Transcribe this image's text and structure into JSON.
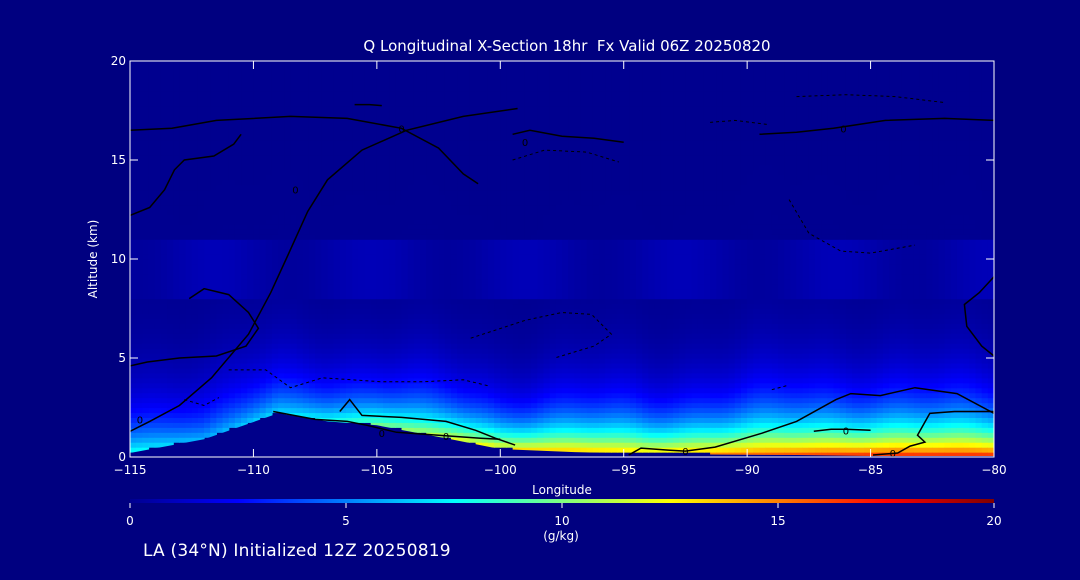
{
  "chart_data": {
    "type": "heatmap",
    "title": "Q Longitudinal X-Section 18hr  Fx Valid 06Z 20250820",
    "xlabel": "Longitude",
    "ylabel": "Altitude (km)",
    "xlim": [
      -115,
      -80
    ],
    "ylim": [
      0,
      20
    ],
    "x_ticks": [
      -115,
      -110,
      -105,
      -100,
      -95,
      -90,
      -85,
      -80
    ],
    "y_ticks": [
      0,
      5,
      10,
      15,
      20
    ],
    "x_tick_labels": [
      "−115",
      "−110",
      "−105",
      "−100",
      "−95",
      "−90",
      "−85",
      "−80"
    ],
    "y_tick_labels": [
      "0",
      "5",
      "10",
      "15",
      "20"
    ],
    "colorbar": {
      "label": "(g/kg)",
      "range": [
        0,
        20
      ],
      "ticks": [
        0,
        5,
        10,
        15,
        20
      ],
      "tick_labels": [
        "0",
        "5",
        "10",
        "15",
        "20"
      ]
    },
    "columns": [
      {
        "lon": -115,
        "terrain": 0.2,
        "mix_sfc": 8,
        "scale": 1.9
      },
      {
        "lon": -112,
        "terrain": 0.9,
        "mix_sfc": 6,
        "scale": 1.9
      },
      {
        "lon": -109,
        "terrain": 2.2,
        "mix_sfc": 7,
        "scale": 1.8
      },
      {
        "lon": -107,
        "terrain": 1.8,
        "mix_sfc": 8,
        "scale": 1.8
      },
      {
        "lon": -105,
        "terrain": 1.6,
        "mix_sfc": 10,
        "scale": 1.7
      },
      {
        "lon": -102,
        "terrain": 0.9,
        "mix_sfc": 12,
        "scale": 1.7
      },
      {
        "lon": -100,
        "terrain": 0.4,
        "mix_sfc": 13,
        "scale": 1.6
      },
      {
        "lon": -97,
        "terrain": 0.25,
        "mix_sfc": 14,
        "scale": 1.7
      },
      {
        "lon": -94,
        "terrain": 0.15,
        "mix_sfc": 14,
        "scale": 1.7
      },
      {
        "lon": -91,
        "terrain": 0.12,
        "mix_sfc": 15,
        "scale": 1.8
      },
      {
        "lon": -88,
        "terrain": 0.1,
        "mix_sfc": 16,
        "scale": 1.9
      },
      {
        "lon": -85,
        "terrain": 0.05,
        "mix_sfc": 17,
        "scale": 1.9
      },
      {
        "lon": -82,
        "terrain": 0.05,
        "mix_sfc": 17,
        "scale": 1.8
      },
      {
        "lon": -80,
        "terrain": 0.05,
        "mix_sfc": 17,
        "scale": 1.8
      }
    ],
    "contours": [
      {
        "label": "0",
        "style": "solid",
        "label_at": [
          -114.6,
          1.9
        ],
        "points": [
          [
            -115,
            1.3
          ],
          [
            -114.2,
            1.8
          ],
          [
            -113.0,
            2.6
          ],
          [
            -111.7,
            4.0
          ],
          [
            -110.2,
            6.2
          ],
          [
            -109.3,
            8.3
          ],
          [
            -108.6,
            10.2
          ],
          [
            -107.8,
            12.4
          ],
          [
            -107.0,
            14.0
          ],
          [
            -105.6,
            15.5
          ],
          [
            -103.8,
            16.5
          ],
          [
            -101.5,
            17.2
          ],
          [
            -99.3,
            17.6
          ]
        ]
      },
      {
        "label": "0",
        "style": "solid",
        "label_at": [
          -104.8,
          1.2
        ],
        "points": [
          [
            -109.2,
            2.3
          ],
          [
            -107.5,
            1.9
          ],
          [
            -106.2,
            1.8
          ],
          [
            -105.4,
            1.6
          ],
          [
            -104.2,
            1.25
          ],
          [
            -102.5,
            1.1
          ],
          [
            -100.8,
            0.95
          ],
          [
            -100,
            0.9
          ]
        ]
      },
      {
        "label": "0",
        "style": "solid",
        "label_at": [
          -102.2,
          1.05
        ],
        "points": [
          [
            -106.5,
            2.3
          ],
          [
            -106.1,
            2.9
          ],
          [
            -105.6,
            2.1
          ],
          [
            -104.0,
            2.0
          ],
          [
            -102.2,
            1.8
          ],
          [
            -101.0,
            1.35
          ],
          [
            -100.2,
            0.95
          ],
          [
            -99.4,
            0.6
          ]
        ]
      },
      {
        "label": "0",
        "style": "solid",
        "label_at": [
          -92.5,
          0.3
        ],
        "points": [
          [
            -94.8,
            0.1
          ],
          [
            -94.3,
            0.45
          ],
          [
            -93.2,
            0.35
          ],
          [
            -92.5,
            0.3
          ],
          [
            -91.3,
            0.5
          ],
          [
            -89.4,
            1.2
          ],
          [
            -88.0,
            1.8
          ],
          [
            -86.4,
            2.9
          ],
          [
            -85.8,
            3.2
          ],
          [
            -84.6,
            3.1
          ],
          [
            -83.2,
            3.5
          ],
          [
            -81.5,
            3.2
          ],
          [
            -80.0,
            2.2
          ]
        ]
      },
      {
        "label": "0",
        "style": "solid",
        "label_at": [
          -86.0,
          1.35
        ],
        "points": [
          [
            -87.3,
            1.3
          ],
          [
            -86.6,
            1.4
          ],
          [
            -86.0,
            1.4
          ],
          [
            -85.0,
            1.35
          ]
        ]
      },
      {
        "label": "0",
        "style": "solid",
        "label_at": [
          -84.1,
          0.2
        ],
        "points": [
          [
            -84.9,
            0.1
          ],
          [
            -83.9,
            0.2
          ],
          [
            -83.4,
            0.55
          ],
          [
            -82.8,
            0.75
          ],
          [
            -83.1,
            1.1
          ],
          [
            -82.6,
            2.2
          ],
          [
            -81.6,
            2.3
          ],
          [
            -80.0,
            2.3
          ]
        ]
      },
      {
        "label": "0",
        "style": "solid",
        "label_at": [
          -104.0,
          16.6
        ],
        "points": [
          [
            -115,
            16.5
          ],
          [
            -113.3,
            16.6
          ],
          [
            -111.5,
            17.0
          ],
          [
            -108.5,
            17.2
          ],
          [
            -106.2,
            17.1
          ],
          [
            -104.0,
            16.6
          ],
          [
            -102.5,
            15.6
          ],
          [
            -101.5,
            14.3
          ],
          [
            -100.9,
            13.8
          ]
        ]
      },
      {
        "label": "0",
        "style": "solid",
        "label_at": [
          -99.0,
          15.9
        ],
        "points": [
          [
            -99.5,
            16.3
          ],
          [
            -98.8,
            16.5
          ],
          [
            -97.5,
            16.2
          ],
          [
            -96.2,
            16.1
          ],
          [
            -95.0,
            15.9
          ]
        ]
      },
      {
        "label": "0",
        "style": "solid",
        "label_at": [
          -86.1,
          16.6
        ],
        "points": [
          [
            -89.5,
            16.3
          ],
          [
            -88.0,
            16.4
          ],
          [
            -86.5,
            16.6
          ],
          [
            -84.4,
            17.0
          ],
          [
            -82.0,
            17.1
          ],
          [
            -80.0,
            17.0
          ]
        ]
      },
      {
        "label": "0",
        "style": "solid",
        "label_at": [
          -108.3,
          13.5
        ],
        "points": [
          [
            -115,
            12.2
          ],
          [
            -114.2,
            12.6
          ],
          [
            -113.6,
            13.5
          ],
          [
            -113.2,
            14.5
          ],
          [
            -112.8,
            15.0
          ],
          [
            -111.6,
            15.2
          ],
          [
            -110.8,
            15.8
          ],
          [
            -110.5,
            16.3
          ]
        ]
      },
      {
        "label": "",
        "style": "solid",
        "points": [
          [
            -112.6,
            8.0
          ],
          [
            -112.0,
            8.5
          ],
          [
            -111.0,
            8.2
          ],
          [
            -110.2,
            7.3
          ],
          [
            -109.8,
            6.5
          ],
          [
            -110.3,
            5.6
          ],
          [
            -111.5,
            5.1
          ],
          [
            -113.0,
            5.0
          ],
          [
            -114.3,
            4.8
          ],
          [
            -115,
            4.6
          ]
        ]
      },
      {
        "label": "",
        "style": "solid",
        "points": [
          [
            -80.0,
            9.1
          ],
          [
            -80.6,
            8.3
          ],
          [
            -81.2,
            7.7
          ],
          [
            -81.1,
            6.6
          ],
          [
            -80.5,
            5.6
          ],
          [
            -80.0,
            5.1
          ]
        ]
      },
      {
        "label": "",
        "style": "solid",
        "points": [
          [
            -105.9,
            17.8
          ],
          [
            -105.3,
            17.8
          ],
          [
            -104.8,
            17.75
          ]
        ]
      },
      {
        "label": "",
        "style": "dashed",
        "points": [
          [
            -111.0,
            4.4
          ],
          [
            -109.5,
            4.4
          ],
          [
            -108.5,
            3.5
          ],
          [
            -107.2,
            4.0
          ],
          [
            -104.8,
            3.8
          ],
          [
            -103.2,
            3.8
          ],
          [
            -101.5,
            3.9
          ],
          [
            -100.5,
            3.6
          ]
        ]
      },
      {
        "label": "",
        "style": "dashed",
        "points": [
          [
            -112.8,
            2.9
          ],
          [
            -112.0,
            2.6
          ],
          [
            -111.4,
            3.0
          ]
        ]
      },
      {
        "label": "",
        "style": "dashed",
        "points": [
          [
            -101.2,
            6.0
          ],
          [
            -99.0,
            6.9
          ],
          [
            -97.5,
            7.3
          ],
          [
            -96.3,
            7.2
          ],
          [
            -95.5,
            6.2
          ],
          [
            -96.2,
            5.6
          ],
          [
            -97.8,
            5.0
          ]
        ]
      },
      {
        "label": "",
        "style": "dashed",
        "points": [
          [
            -99.5,
            15.0
          ],
          [
            -98.2,
            15.5
          ],
          [
            -96.5,
            15.4
          ],
          [
            -95.2,
            14.9
          ]
        ]
      },
      {
        "label": "",
        "style": "dashed",
        "points": [
          [
            -88.0,
            18.2
          ],
          [
            -86.0,
            18.3
          ],
          [
            -84.0,
            18.2
          ],
          [
            -82.0,
            17.9
          ]
        ]
      },
      {
        "label": "",
        "style": "dashed",
        "points": [
          [
            -91.5,
            16.9
          ],
          [
            -90.5,
            17.0
          ],
          [
            -89.2,
            16.8
          ]
        ]
      },
      {
        "label": "",
        "style": "dashed",
        "points": [
          [
            -88.3,
            13.0
          ],
          [
            -87.5,
            11.3
          ],
          [
            -86.2,
            10.4
          ],
          [
            -85.0,
            10.3
          ],
          [
            -83.2,
            10.7
          ]
        ]
      },
      {
        "label": "",
        "style": "dashed",
        "points": [
          [
            -89.0,
            3.4
          ],
          [
            -88.4,
            3.6
          ]
        ]
      }
    ]
  },
  "footer": {
    "text": "LA (34°N) Initialized 12Z 20250819"
  }
}
